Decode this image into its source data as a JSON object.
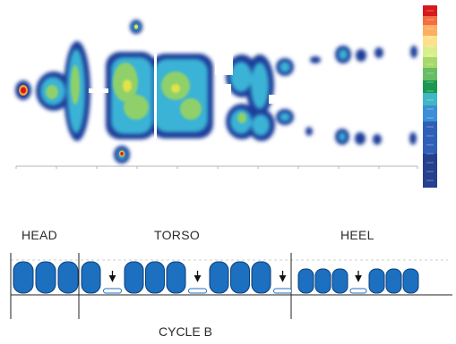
{
  "sections": {
    "head": "HEAD",
    "torso": "TORSO",
    "heel": "HEEL"
  },
  "cycle_label": "CYCLE B",
  "colors": {
    "cell_fill": "#1d6fc0",
    "cell_stroke": "#0b3f78",
    "deflated_stroke": "#1d6fc0",
    "line": "#222222",
    "dashed": "#c8c8c8"
  },
  "pressure_map": {
    "scale_colors": [
      "#d7191c",
      "#f46d43",
      "#fdae61",
      "#fee08b",
      "#d9ef8b",
      "#a6d96a",
      "#66bd63",
      "#1a9850",
      "#3fb7c4",
      "#3a8fd6",
      "#2f5fb8",
      "#25408f"
    ]
  },
  "cells": {
    "head": [
      "inflated",
      "inflated",
      "inflated"
    ],
    "torso": [
      "inflated",
      "deflated",
      "inflated",
      "inflated",
      "inflated",
      "deflated",
      "inflated",
      "inflated",
      "inflated",
      "deflated"
    ],
    "heel": [
      "inflated",
      "inflated",
      "inflated",
      "deflated",
      "inflated",
      "inflated",
      "inflated"
    ]
  }
}
